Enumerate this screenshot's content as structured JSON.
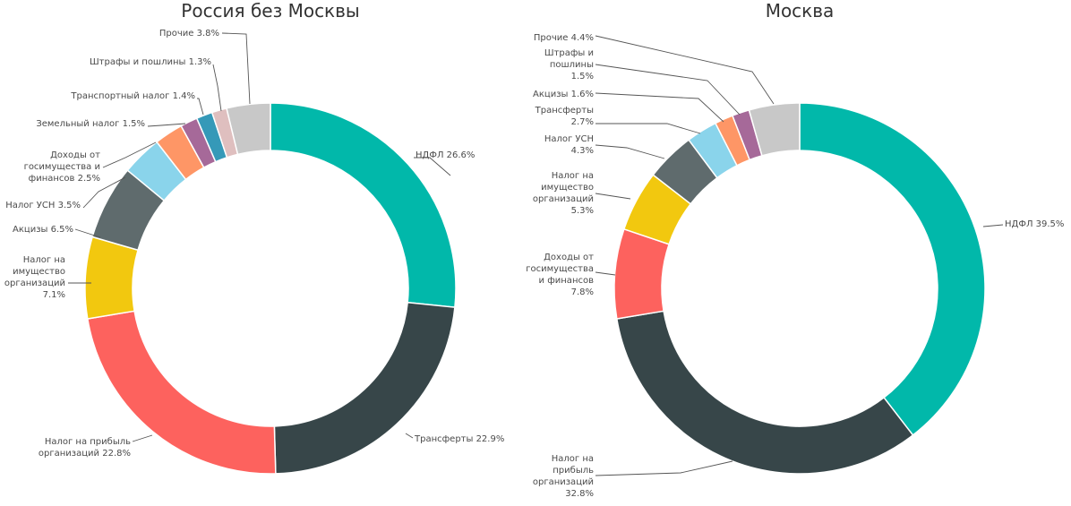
{
  "chart_data": [
    {
      "type": "donut",
      "title": "Россия без Москвы",
      "slices": [
        {
          "name": "НДФЛ",
          "value": 26.6,
          "color": "#01b8aa",
          "label": [
            "НДФЛ 26.6%"
          ]
        },
        {
          "name": "Трансферты",
          "value": 22.9,
          "color": "#374649",
          "label": [
            "Трансферты 22.9%"
          ]
        },
        {
          "name": "Налог на прибыль организаций",
          "value": 22.8,
          "color": "#fd625e",
          "label": [
            "Налог на прибыль",
            "организаций 22.8%"
          ]
        },
        {
          "name": "Налог на имущество организаций",
          "value": 7.1,
          "color": "#f2c80f",
          "label": [
            "Налог на",
            "имущество",
            "организаций",
            "7.1%"
          ]
        },
        {
          "name": "Акцизы",
          "value": 6.5,
          "color": "#5f6b6d",
          "label": [
            "Акцизы 6.5%"
          ]
        },
        {
          "name": "Налог УСН",
          "value": 3.5,
          "color": "#8ad4eb",
          "label": [
            "Налог УСН 3.5%"
          ]
        },
        {
          "name": "Доходы от госимущества и финансов",
          "value": 2.5,
          "color": "#fe9666",
          "label": [
            "Доходы от",
            "госимущества и",
            "финансов 2.5%"
          ]
        },
        {
          "name": "Земельный налог",
          "value": 1.5,
          "color": "#a66999",
          "label": [
            "Земельный налог 1.5%"
          ]
        },
        {
          "name": "Транспортный налог",
          "value": 1.4,
          "color": "#3599b8",
          "label": [
            "Транспортный налог 1.4%"
          ]
        },
        {
          "name": "Штрафы и пошлины",
          "value": 1.3,
          "color": "#dfbfbf",
          "label": [
            "Штрафы и пошлины 1.3%"
          ]
        },
        {
          "name": "Прочие",
          "value": 3.8,
          "color": "#c8c8c8",
          "label": [
            "Прочие 3.8%"
          ]
        }
      ]
    },
    {
      "type": "donut",
      "title": "Москва",
      "slices": [
        {
          "name": "НДФЛ",
          "value": 39.5,
          "color": "#01b8aa",
          "label": [
            "НДФЛ 39.5%"
          ]
        },
        {
          "name": "Налог на прибыль организаций",
          "value": 32.8,
          "color": "#374649",
          "label": [
            "Налог на",
            "прибыль",
            "организаций",
            "32.8%"
          ]
        },
        {
          "name": "Доходы от госимущества и финансов",
          "value": 7.8,
          "color": "#fd625e",
          "label": [
            "Доходы от",
            "госимущества",
            "и финансов",
            "7.8%"
          ]
        },
        {
          "name": "Налог на имущество организаций",
          "value": 5.3,
          "color": "#f2c80f",
          "label": [
            "Налог на",
            "имущество",
            "организаций",
            "5.3%"
          ]
        },
        {
          "name": "Налог УСН",
          "value": 4.3,
          "color": "#5f6b6d",
          "label": [
            "Налог УСН",
            "4.3%"
          ]
        },
        {
          "name": "Трансферты",
          "value": 2.7,
          "color": "#8ad4eb",
          "label": [
            "Трансферты",
            "2.7%"
          ]
        },
        {
          "name": "Акцизы",
          "value": 1.6,
          "color": "#fe9666",
          "label": [
            "Акцизы 1.6%"
          ]
        },
        {
          "name": "Штрафы и пошлины",
          "value": 1.5,
          "color": "#a66999",
          "label": [
            "Штрафы и",
            "пошлины",
            "1.5%"
          ]
        },
        {
          "name": "Прочие",
          "value": 4.4,
          "color": "#c8c8c8",
          "label": [
            "Прочие 4.4%"
          ]
        }
      ]
    }
  ]
}
